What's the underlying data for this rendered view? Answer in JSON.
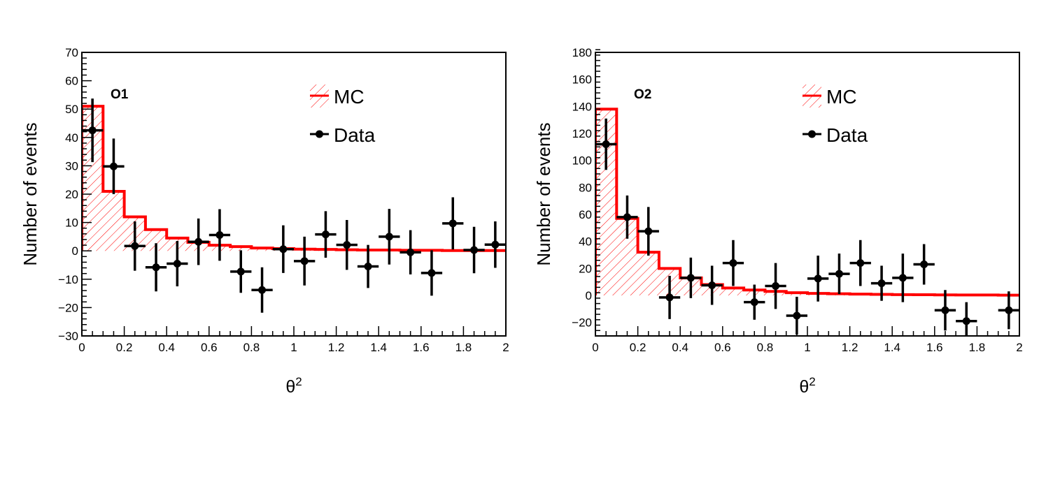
{
  "chart_data": [
    {
      "type": "histogram",
      "panel_label": "O1",
      "xlabel": "θ",
      "xlabel_sup": "2",
      "ylabel": "Number of events",
      "xlim": [
        0,
        2
      ],
      "ylim": [
        -30,
        70
      ],
      "x_ticks": [
        0,
        0.2,
        0.4,
        0.6,
        0.8,
        1,
        1.2,
        1.4,
        1.6,
        1.8,
        2
      ],
      "x_tick_labels": [
        "0",
        "0.2",
        "0.4",
        "0.6",
        "0.8",
        "1",
        "1.2",
        "1.4",
        "1.6",
        "1.8",
        "2"
      ],
      "y_ticks": [
        -30,
        -20,
        -10,
        0,
        10,
        20,
        30,
        40,
        50,
        60,
        70
      ],
      "y_tick_labels": [
        "−30",
        "−20",
        "−10",
        "0",
        "10",
        "20",
        "30",
        "40",
        "50",
        "60",
        "70"
      ],
      "legend": {
        "position": "top-right",
        "entries": [
          {
            "label": "MC"
          },
          {
            "label": "Data"
          }
        ]
      },
      "bin_edges": [
        0,
        0.1,
        0.2,
        0.3,
        0.4,
        0.5,
        0.6,
        0.7,
        0.8,
        0.9,
        1.0,
        1.1,
        1.2,
        1.3,
        1.4,
        1.5,
        1.6,
        1.7,
        1.8,
        1.9,
        2.0
      ],
      "series": [
        {
          "name": "MC",
          "kind": "step-hatched",
          "color": "#ff0000",
          "values": [
            51,
            21,
            12,
            7.5,
            4.5,
            3,
            2,
            1.5,
            1,
            0.8,
            0.6,
            0.5,
            0.4,
            0.3,
            0.3,
            0.2,
            0.2,
            0.1,
            0.1,
            0.1
          ]
        },
        {
          "name": "Data",
          "kind": "errorbar",
          "color": "#000000",
          "x": [
            0.05,
            0.15,
            0.25,
            0.35,
            0.45,
            0.55,
            0.65,
            0.75,
            0.85,
            0.95,
            1.05,
            1.15,
            1.25,
            1.35,
            1.45,
            1.55,
            1.65,
            1.75,
            1.85,
            1.95
          ],
          "y": [
            42.5,
            29.8,
            1.7,
            -5.8,
            -4.5,
            3.2,
            5.6,
            -7.3,
            -13.8,
            0.6,
            -3.6,
            5.8,
            2.1,
            -5.5,
            5.0,
            -0.5,
            -7.8,
            9.7,
            0.3,
            2.2
          ],
          "yerr": [
            11.2,
            9.8,
            8.7,
            8.5,
            8.0,
            8.2,
            9.1,
            7.5,
            8.0,
            8.4,
            8.6,
            8.2,
            8.8,
            7.6,
            9.8,
            7.8,
            8.0,
            9.2,
            8.2,
            8.2
          ]
        }
      ]
    },
    {
      "type": "histogram",
      "panel_label": "O2",
      "xlabel": "θ",
      "xlabel_sup": "2",
      "ylabel": "Number of events",
      "xlim": [
        0,
        2
      ],
      "ylim": [
        -30,
        180
      ],
      "x_ticks": [
        0,
        0.2,
        0.4,
        0.6,
        0.8,
        1,
        1.2,
        1.4,
        1.6,
        1.8,
        2
      ],
      "x_tick_labels": [
        "0",
        "0.2",
        "0.4",
        "0.6",
        "0.8",
        "1",
        "1.2",
        "1.4",
        "1.6",
        "1.8",
        "2"
      ],
      "y_ticks": [
        -20,
        0,
        20,
        40,
        60,
        80,
        100,
        120,
        140,
        160,
        180
      ],
      "y_tick_labels": [
        "−20",
        "0",
        "20",
        "40",
        "60",
        "80",
        "100",
        "120",
        "140",
        "160",
        "180"
      ],
      "legend": {
        "position": "top-right",
        "entries": [
          {
            "label": "MC"
          },
          {
            "label": "Data"
          }
        ]
      },
      "bin_edges": [
        0,
        0.1,
        0.2,
        0.3,
        0.4,
        0.5,
        0.6,
        0.7,
        0.8,
        0.9,
        1.0,
        1.1,
        1.2,
        1.3,
        1.4,
        1.5,
        1.6,
        1.7,
        1.8,
        1.9,
        2.0
      ],
      "series": [
        {
          "name": "MC",
          "kind": "step-hatched",
          "color": "#ff0000",
          "values": [
            138,
            57,
            32,
            20,
            13,
            8,
            5.5,
            4,
            3,
            2,
            1.5,
            1.2,
            1,
            0.8,
            0.6,
            0.5,
            0.4,
            0.3,
            0.3,
            0.2
          ]
        },
        {
          "name": "Data",
          "kind": "errorbar",
          "color": "#000000",
          "x": [
            0.05,
            0.15,
            0.25,
            0.35,
            0.45,
            0.55,
            0.65,
            0.75,
            0.85,
            0.95,
            1.05,
            1.15,
            1.25,
            1.35,
            1.45,
            1.55,
            1.65,
            1.75,
            1.95
          ],
          "y": [
            112,
            58,
            47.5,
            -1.5,
            13,
            7.5,
            24,
            -5,
            7,
            -15,
            12.5,
            16,
            24,
            9,
            13,
            23,
            -11,
            -19,
            -11
          ],
          "yerr": [
            19,
            16,
            18,
            16,
            15,
            14.5,
            17,
            13,
            17,
            14,
            17,
            15,
            17,
            13,
            18,
            15,
            15,
            14,
            14
          ]
        }
      ]
    }
  ]
}
